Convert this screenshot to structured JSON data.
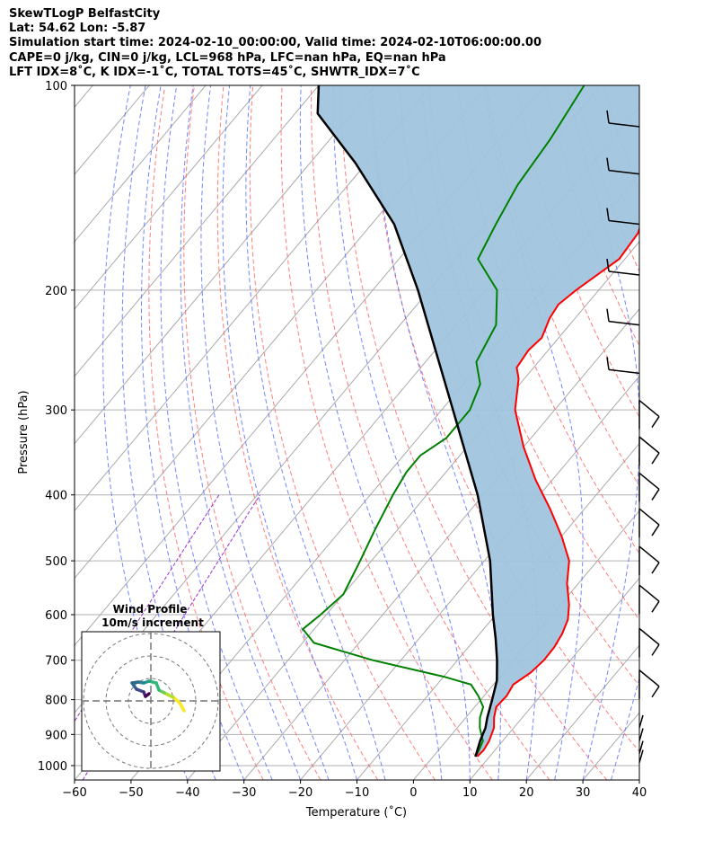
{
  "header": {
    "line1": "SkewTLogP BelfastCity",
    "line2": "Lat: 54.62   Lon: -5.87",
    "line3": "Simulation start time: 2024-02-10_00:00:00, Valid time: 2024-02-10T06:00:00.00",
    "line4": "CAPE=0 j/kg, CIN=0 j/kg, LCL=968 hPa, LFC=nan hPa, EQ=nan hPa",
    "line5": "LFT IDX=8˚C, K IDX=-1˚C, TOTAL TOTS=45˚C, SHWTR_IDX=7˚C"
  },
  "chart_data": {
    "type": "line",
    "subtype": "skew-t log-p",
    "xlabel": "Temperature (˚C)",
    "ylabel": "Pressure (hPa)",
    "xlim": [
      -60,
      40
    ],
    "ylim": [
      1050,
      100
    ],
    "y_scale": "log",
    "x_ticks": [
      -60,
      -50,
      -40,
      -30,
      -20,
      -10,
      0,
      10,
      20,
      30,
      40
    ],
    "x_tick_labels": [
      "−60",
      "−50",
      "−40",
      "−30",
      "−20",
      "−10",
      "0",
      "10",
      "20",
      "30",
      "40"
    ],
    "y_ticks": [
      1000,
      900,
      800,
      700,
      600,
      500,
      400,
      300,
      200,
      100
    ],
    "y_tick_labels": [
      "1000",
      "900",
      "800",
      "700",
      "600",
      "500",
      "400",
      "300",
      "200",
      "100"
    ],
    "grid": true,
    "colors": {
      "temperature": "#ff0000",
      "dewpoint": "#008000",
      "parcel": "#000000",
      "shade": "#a0c4de",
      "dry_adiabat": "#ff6666",
      "moist_adiabat": "#5566ff",
      "mixing_ratio": "#9933cc",
      "isotherm": "#aaaaaa"
    },
    "series": [
      {
        "role": "temperature",
        "points": [
          [
            7.8,
            970
          ],
          [
            8,
            950
          ],
          [
            7.6,
            920
          ],
          [
            6.5,
            880
          ],
          [
            5,
            850
          ],
          [
            3.8,
            820
          ],
          [
            4,
            790
          ],
          [
            3.5,
            760
          ],
          [
            4.8,
            730
          ],
          [
            5.3,
            700
          ],
          [
            5.2,
            670
          ],
          [
            4.6,
            640
          ],
          [
            3.5,
            610
          ],
          [
            1.5,
            580
          ],
          [
            -2,
            540
          ],
          [
            -5,
            500
          ],
          [
            -10,
            460
          ],
          [
            -16,
            420
          ],
          [
            -23,
            380
          ],
          [
            -30,
            340
          ],
          [
            -37,
            300
          ],
          [
            -41,
            270
          ],
          [
            -43,
            260
          ],
          [
            -43.5,
            245
          ],
          [
            -43,
            235
          ],
          [
            -44.5,
            220
          ],
          [
            -45,
            210
          ],
          [
            -44,
            200
          ],
          [
            -41,
            180
          ],
          [
            -41.5,
            165
          ],
          [
            -44,
            150
          ],
          [
            -48,
            135
          ],
          [
            -52,
            120
          ],
          [
            -56,
            105
          ],
          [
            -57.5,
            100
          ]
        ]
      },
      {
        "role": "dewpoint",
        "points": [
          [
            7.5,
            970
          ],
          [
            7.2,
            950
          ],
          [
            6.5,
            920
          ],
          [
            4,
            880
          ],
          [
            2.5,
            850
          ],
          [
            1.5,
            820
          ],
          [
            -1,
            790
          ],
          [
            -4,
            760
          ],
          [
            -10,
            740
          ],
          [
            -25,
            700
          ],
          [
            -38,
            660
          ],
          [
            -42,
            630
          ],
          [
            -41,
            600
          ],
          [
            -40,
            560
          ],
          [
            -42,
            500
          ],
          [
            -44,
            450
          ],
          [
            -46,
            400
          ],
          [
            -47,
            370
          ],
          [
            -47,
            350
          ],
          [
            -45,
            330
          ],
          [
            -45,
            300
          ],
          [
            -47,
            275
          ],
          [
            -51,
            255
          ],
          [
            -53,
            225
          ],
          [
            -58,
            200
          ],
          [
            -66,
            180
          ],
          [
            -68,
            160
          ],
          [
            -70,
            140
          ],
          [
            -71,
            120
          ],
          [
            -73,
            100
          ]
        ]
      },
      {
        "role": "parcel",
        "points": [
          [
            7.5,
            970
          ],
          [
            6,
            920
          ],
          [
            5,
            880
          ],
          [
            3.8,
            850
          ],
          [
            2,
            800
          ],
          [
            0,
            750
          ],
          [
            -3,
            700
          ],
          [
            -6.5,
            650
          ],
          [
            -10.5,
            600
          ],
          [
            -19,
            500
          ],
          [
            -31,
            400
          ],
          [
            -48,
            300
          ],
          [
            -72,
            200
          ],
          [
            -86,
            160
          ],
          [
            -102,
            130
          ],
          [
            -116,
            110
          ],
          [
            -120,
            100
          ]
        ]
      }
    ],
    "wind_barbs": [
      {
        "p": 990
      },
      {
        "p": 960
      },
      {
        "p": 920
      },
      {
        "p": 880
      },
      {
        "p": 760
      },
      {
        "p": 660
      },
      {
        "p": 570
      },
      {
        "p": 500
      },
      {
        "p": 440
      },
      {
        "p": 390
      },
      {
        "p": 345
      },
      {
        "p": 305
      },
      {
        "p": 265
      },
      {
        "p": 225
      },
      {
        "p": 190
      },
      {
        "p": 160
      },
      {
        "p": 135
      },
      {
        "p": 115
      }
    ],
    "hodograph": {
      "title_line1": "Wind Profile",
      "title_line2": "10m/s increment",
      "rings": 3
    }
  }
}
